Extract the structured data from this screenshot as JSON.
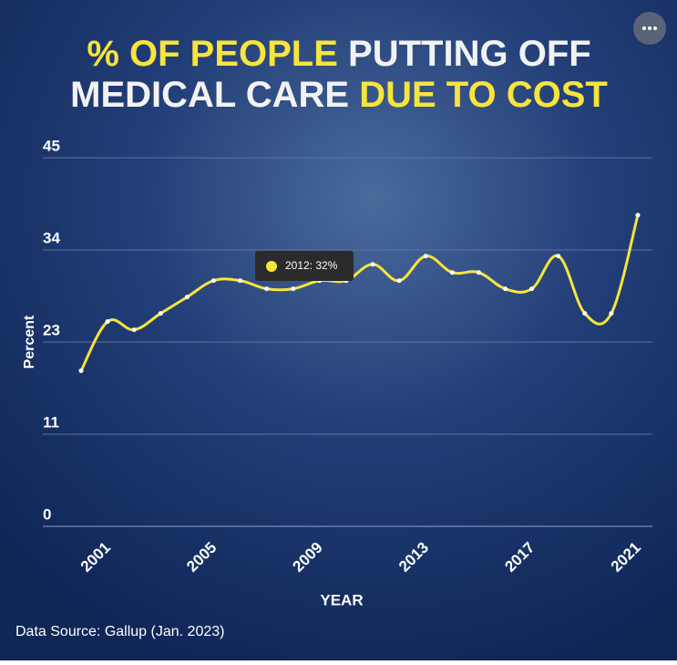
{
  "chart_data": {
    "type": "line",
    "title_parts": [
      {
        "text": "% OF PEOPLE",
        "color": "#f7e43c"
      },
      {
        "text": "PUTTING OFF",
        "color": "#f2f2f2"
      },
      {
        "text": "MEDICAL CARE",
        "color": "#f2f2f2"
      },
      {
        "text": "DUE TO COST",
        "color": "#f7e43c"
      }
    ],
    "x_label": "YEAR",
    "y_label": "Percent",
    "source": "Data Source: Gallup (Jan. 2023)",
    "tooltip": "2012: 32%",
    "x": [
      2001,
      2002,
      2003,
      2004,
      2005,
      2006,
      2007,
      2008,
      2009,
      2010,
      2011,
      2012,
      2013,
      2014,
      2015,
      2016,
      2017,
      2018,
      2019,
      2020,
      2021,
      2022
    ],
    "values": [
      19,
      25,
      24,
      26,
      28,
      30,
      30,
      29,
      29,
      30,
      30,
      32,
      30,
      33,
      31,
      31,
      29,
      29,
      33,
      26,
      26,
      38
    ],
    "color": "#f7e43c",
    "xlim": [
      2001,
      2022
    ],
    "xticks": [
      2001,
      2005,
      2009,
      2013,
      2017,
      2021
    ],
    "ylim": [
      0,
      45
    ],
    "yticks": [
      0,
      {
        "value": 11.25,
        "label": "11"
      },
      {
        "value": 22.5,
        "label": "23"
      },
      {
        "value": 33.75,
        "label": "34"
      },
      45
    ],
    "grid": true
  }
}
